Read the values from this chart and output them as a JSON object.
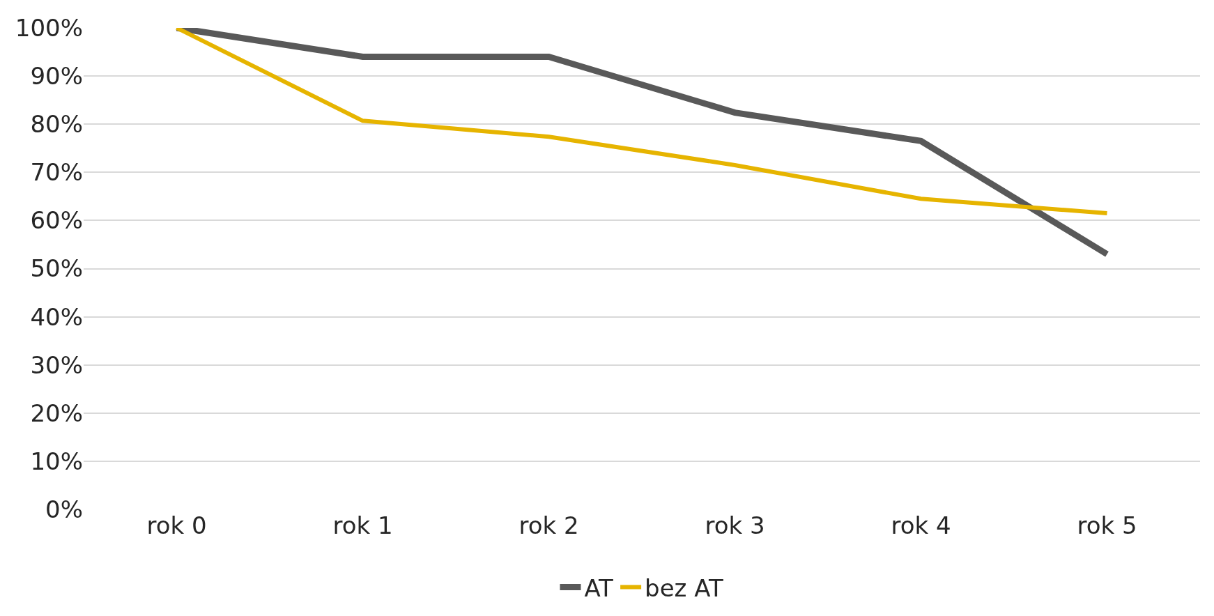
{
  "chart_data": {
    "type": "line",
    "categories": [
      "rok 0",
      "rok 1",
      "rok 2",
      "rok 3",
      "rok 4",
      "rok 5"
    ],
    "series": [
      {
        "name": "AT",
        "color": "#595959",
        "values": [
          100,
          94,
          94,
          82.4,
          76.5,
          53
        ]
      },
      {
        "name": "bez AT",
        "color": "#e6b400",
        "values": [
          100,
          80.7,
          77.4,
          71.5,
          64.5,
          61.5
        ]
      }
    ],
    "ylim": [
      0,
      100
    ],
    "yticks": [
      {
        "value": 0,
        "label": "0%"
      },
      {
        "value": 10,
        "label": "10%"
      },
      {
        "value": 20,
        "label": "20%"
      },
      {
        "value": 30,
        "label": "30%"
      },
      {
        "value": 40,
        "label": "40%"
      },
      {
        "value": 50,
        "label": "50%"
      },
      {
        "value": 60,
        "label": "60%"
      },
      {
        "value": 70,
        "label": "70%"
      },
      {
        "value": 80,
        "label": "80%"
      },
      {
        "value": 90,
        "label": "90%"
      },
      {
        "value": 100,
        "label": "100%"
      }
    ],
    "grid": "y",
    "legend": "bottom",
    "marker": "none",
    "line_style": "solid"
  }
}
